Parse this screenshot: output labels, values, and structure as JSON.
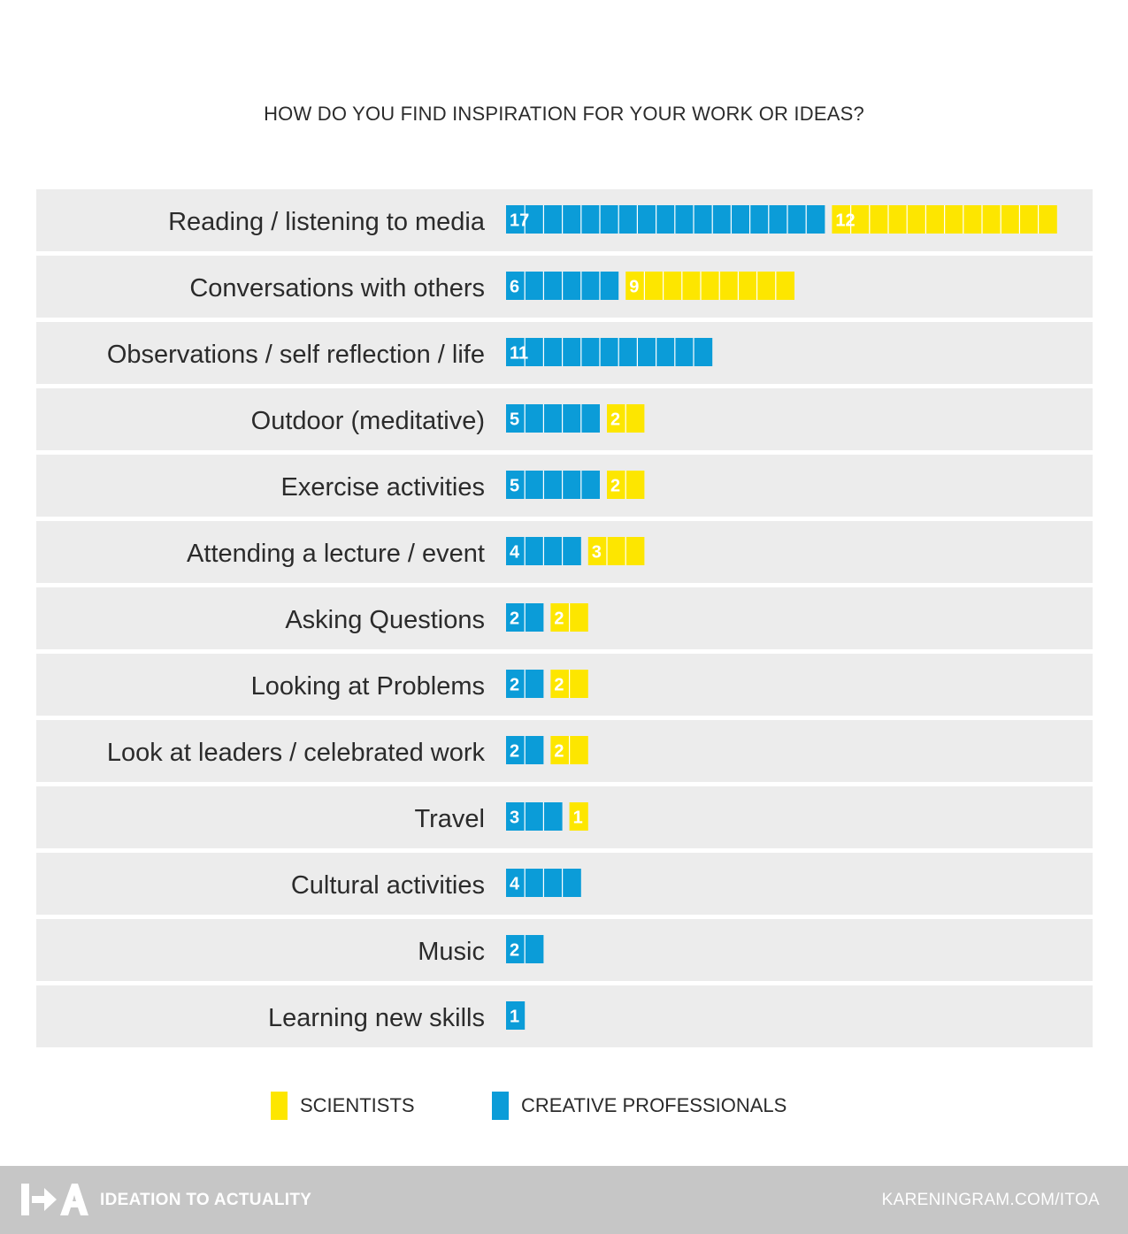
{
  "chart_data": {
    "type": "bar",
    "title": "HOW DO YOU FIND INSPIRATION FOR YOUR WORK OR IDEAS?",
    "categories": [
      "Reading / listening to media",
      "Conversations with others",
      "Observations / self reflection / life",
      "Outdoor (meditative)",
      "Exercise activities",
      "Attending a lecture / event",
      "Asking Questions",
      "Looking at Problems",
      "Look at leaders / celebrated work",
      "Travel",
      "Cultural activities",
      "Music",
      "Learning new skills"
    ],
    "series": [
      {
        "name": "CREATIVE PROFESSIONALS",
        "color": "#0b9cd8",
        "values": [
          17,
          6,
          11,
          5,
          5,
          4,
          2,
          2,
          2,
          3,
          4,
          2,
          1
        ]
      },
      {
        "name": "SCIENTISTS",
        "color": "#fde600",
        "values": [
          12,
          9,
          0,
          2,
          2,
          3,
          2,
          2,
          2,
          1,
          0,
          0,
          0
        ]
      }
    ],
    "orientation": "horizontal",
    "legend_position": "bottom"
  },
  "legend": {
    "scientists_label": "SCIENTISTS",
    "creative_label": "CREATIVE PROFESSIONALS"
  },
  "footer": {
    "title": "IDEATION TO ACTUALITY",
    "url": "KARENINGRAM.COM/ITOA",
    "logo": "I→A"
  }
}
